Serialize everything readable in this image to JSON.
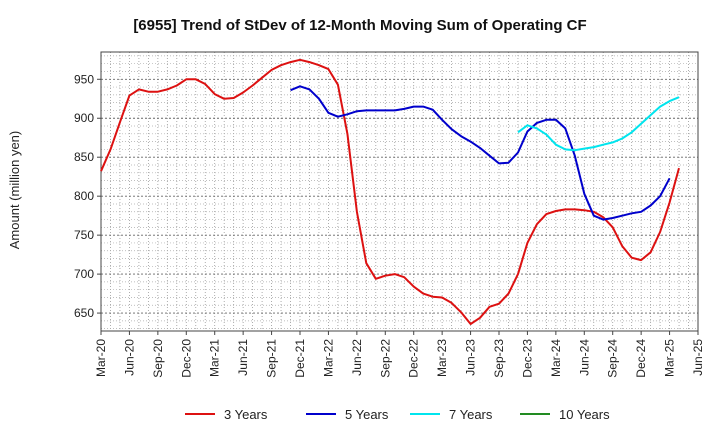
{
  "chart_data": {
    "type": "line",
    "title": "[6955]  Trend of StDev of 12-Month Moving Sum of Operating CF",
    "ylabel": "Amount (million yen)",
    "xlabel": "",
    "ylim": [
      627,
      985
    ],
    "y_ticks": [
      650,
      700,
      750,
      800,
      850,
      900,
      950
    ],
    "x_ticks": [
      "Mar-20",
      "Jun-20",
      "Sep-20",
      "Dec-20",
      "Mar-21",
      "Jun-21",
      "Sep-21",
      "Dec-21",
      "Mar-22",
      "Jun-22",
      "Sep-22",
      "Dec-22",
      "Mar-23",
      "Jun-23",
      "Sep-23",
      "Dec-23",
      "Mar-24",
      "Jun-24",
      "Sep-24",
      "Dec-24",
      "Mar-25",
      "Jun-25"
    ],
    "grid": true,
    "legend_position": "bottom",
    "series": [
      {
        "name": "3 Years",
        "color": "#dd1111",
        "start_index": 0,
        "values": [
          832,
          860,
          895,
          929,
          937,
          934,
          934,
          937,
          942,
          950,
          950,
          944,
          931,
          925,
          926,
          933,
          942,
          952,
          962,
          968,
          972,
          975,
          972,
          968,
          963,
          943,
          880,
          780,
          714,
          694,
          698,
          700,
          696,
          684,
          675,
          671,
          670,
          663,
          651,
          636,
          644,
          658,
          662,
          675,
          700,
          740,
          764,
          777,
          781,
          783,
          783,
          782,
          780,
          773,
          760,
          736,
          721,
          718,
          728,
          754,
          792,
          836
        ]
      },
      {
        "name": "5 Years",
        "color": "#0000cc",
        "start_index": 20,
        "values": [
          936,
          941,
          937,
          925,
          907,
          902,
          905,
          909,
          910,
          910,
          910,
          910,
          912,
          915,
          915,
          911,
          898,
          886,
          877,
          870,
          862,
          852,
          842,
          843,
          856,
          883,
          894,
          898,
          898,
          887,
          852,
          803,
          775,
          770,
          772,
          775,
          778,
          780,
          788,
          800,
          823
        ]
      },
      {
        "name": "7 Years",
        "color": "#00e5ee",
        "start_index": 44,
        "values": [
          882,
          891,
          887,
          879,
          866,
          860,
          859,
          861,
          863,
          866,
          869,
          874,
          882,
          893,
          904,
          915,
          922,
          927
        ]
      },
      {
        "name": "10 Years",
        "color": "#228b22",
        "start_index": 0,
        "values": []
      }
    ]
  }
}
